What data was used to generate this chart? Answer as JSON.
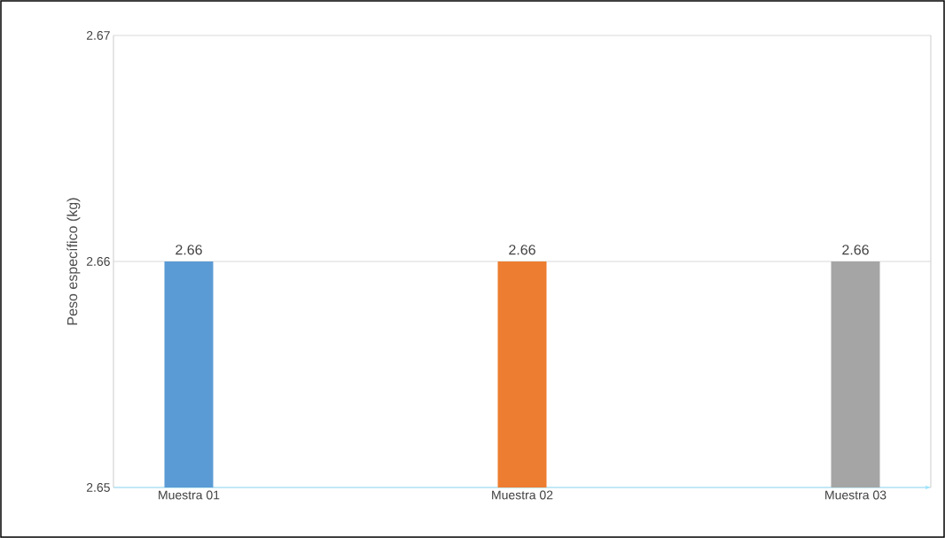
{
  "chart_data": {
    "type": "bar",
    "ylabel": "Peso específico (kg)",
    "categories": [
      "Muestra 01",
      "Muestra 02",
      "Muestra 03"
    ],
    "values": [
      2.66,
      2.66,
      2.66
    ],
    "colors": [
      "#5b9bd5",
      "#ed7d31",
      "#a5a5a5"
    ],
    "ylim": [
      2.65,
      2.67
    ],
    "yticks": [
      2.65,
      2.66,
      2.67
    ],
    "grid": "y",
    "data_labels": true
  }
}
